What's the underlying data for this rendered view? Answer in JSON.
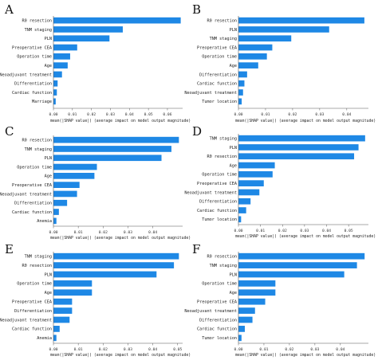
{
  "colors": {
    "bar": "#1e88e5"
  },
  "chart_data": [
    {
      "panel": "A",
      "type": "bar",
      "orientation": "horizontal",
      "categories": [
        "R0 resection",
        "TNM staging",
        "PLN",
        "Preoperative CEA",
        "Operation time",
        "Age",
        "Neoadjuvant treatment",
        "Differentiation",
        "Cardiac function",
        "Marriage"
      ],
      "values": [
        0.067,
        0.0365,
        0.0295,
        0.0125,
        0.0088,
        0.0075,
        0.0045,
        0.0022,
        0.0018,
        0.0012
      ],
      "xticks": [
        "0.00",
        "0.01",
        "0.02",
        "0.03",
        "0.04",
        "0.05",
        "0.06"
      ],
      "xlim": [
        0,
        0.068
      ],
      "xlabel": "mean(|SHAP value|) (average impact on model output magnitude)"
    },
    {
      "panel": "B",
      "type": "bar",
      "orientation": "horizontal",
      "categories": [
        "R0 resection",
        "PLN",
        "TNM staging",
        "Preoperative CEA",
        "Operation time",
        "Age",
        "Differentiation",
        "Cardiac function",
        "Neoadjuvant treatment",
        "Tumor location"
      ],
      "values": [
        0.0465,
        0.0335,
        0.0195,
        0.0125,
        0.0105,
        0.0073,
        0.0032,
        0.0022,
        0.0017,
        0.0012
      ],
      "xticks": [
        "0.00",
        "0.01",
        "0.02",
        "0.03",
        "0.04"
      ],
      "xlim": [
        0,
        0.048
      ],
      "xlabel": "mean(|SHAP value|) (average impact on model output magnitude)"
    },
    {
      "panel": "C",
      "type": "bar",
      "orientation": "horizontal",
      "categories": [
        "R0 resection",
        "TNM staging",
        "PLN",
        "Operation time",
        "Age",
        "Preoperative CEA",
        "Neoadjuvant treatment",
        "Differentiation",
        "Cardiac function",
        "Anemia"
      ],
      "values": [
        0.0505,
        0.0475,
        0.0435,
        0.0175,
        0.0165,
        0.0105,
        0.0095,
        0.0055,
        0.0022,
        0.0012
      ],
      "xticks": [
        "0.00",
        "0.01",
        "0.02",
        "0.03",
        "0.04"
      ],
      "xlim": [
        0,
        0.052
      ],
      "xlabel": "mean(|SHAP value|) (average impact on model output magnitude)"
    },
    {
      "panel": "D",
      "type": "bar",
      "orientation": "horizontal",
      "categories": [
        "TNM staging",
        "PLN",
        "R0 resection",
        "Age",
        "Operation time",
        "Preoperative CEA",
        "Neoadjuvant treatment",
        "Differentiation",
        "Cardiac function",
        "Tumor location"
      ],
      "values": [
        0.0575,
        0.0545,
        0.0525,
        0.0165,
        0.0155,
        0.0115,
        0.0095,
        0.0055,
        0.0035,
        0.0012
      ],
      "xticks": [
        "0.00",
        "0.01",
        "0.02",
        "0.03",
        "0.04",
        "0.05"
      ],
      "xlim": [
        0,
        0.059
      ],
      "xlabel": "mean(|SHAP value|) (average impact on model output magnitude)"
    },
    {
      "panel": "E",
      "type": "bar",
      "orientation": "horizontal",
      "categories": [
        "TNM staging",
        "R0 resection",
        "PLN",
        "Operation time",
        "Age",
        "Preoperative CEA",
        "Differentiation",
        "Neoadjuvant treatment",
        "Cardiac function",
        "Anemia"
      ],
      "values": [
        0.0505,
        0.0485,
        0.0415,
        0.0155,
        0.0155,
        0.0075,
        0.0075,
        0.0065,
        0.0025,
        0.0012
      ],
      "xticks": [
        "0.00",
        "0.01",
        "0.02",
        "0.03",
        "0.04",
        "0.05"
      ],
      "xlim": [
        0,
        0.052
      ],
      "xlabel": "mean(|SHAP value|) (average impact on model output magnitude)"
    },
    {
      "panel": "F",
      "type": "bar",
      "orientation": "horizontal",
      "categories": [
        "R0 resection",
        "TNM staging",
        "PLN",
        "Operation time",
        "Age",
        "Preoperative CEA",
        "Neoadjuvant treatment",
        "Differentiation",
        "Cardiac function",
        "Tumor location"
      ],
      "values": [
        0.0495,
        0.0465,
        0.0415,
        0.0145,
        0.0145,
        0.0105,
        0.0065,
        0.0055,
        0.0025,
        0.0012
      ],
      "xticks": [
        "0.00",
        "0.01",
        "0.02",
        "0.03",
        "0.04"
      ],
      "xlim": [
        0,
        0.051
      ],
      "xlabel": "mean(|SHAP value|) (average impact on model output magnitude)"
    }
  ]
}
